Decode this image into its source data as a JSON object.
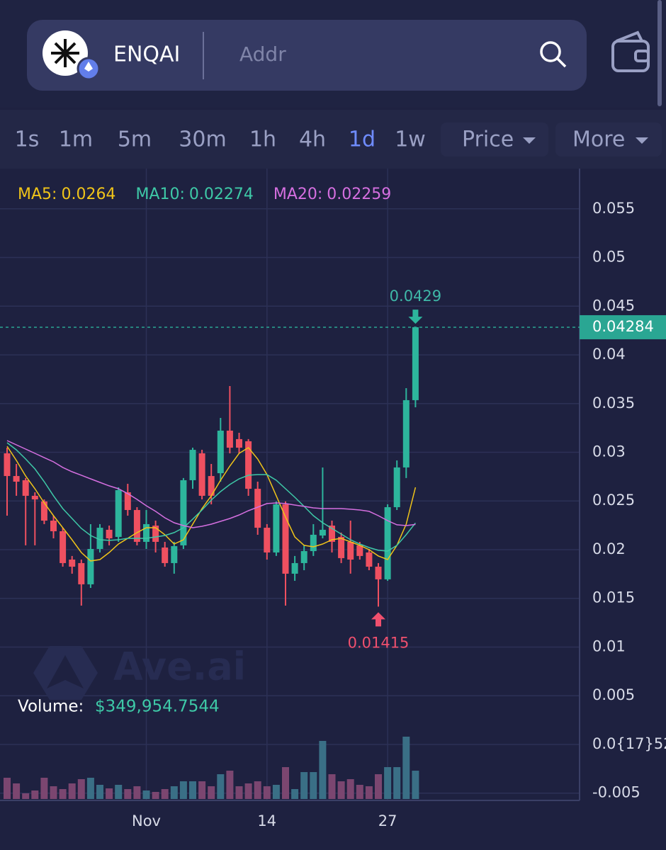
{
  "header": {
    "token": "ENQAI",
    "search_placeholder": "Addr"
  },
  "intervals": [
    "1s",
    "1m",
    "5m",
    "30m",
    "1h",
    "4h",
    "1d",
    "1w"
  ],
  "menus": [
    "Price",
    "More"
  ],
  "watermark": "Ave.ai",
  "chart_data": {
    "type": "candlestick",
    "categories": [
      null,
      null,
      null,
      null,
      null,
      null,
      null,
      null,
      null,
      null,
      null,
      null,
      null,
      null,
      null,
      "Nov",
      null,
      null,
      null,
      null,
      null,
      null,
      null,
      null,
      null,
      null,
      null,
      null,
      "14",
      null,
      null,
      null,
      null,
      null,
      null,
      null,
      null,
      null,
      null,
      null,
      null,
      "27",
      null,
      null,
      null
    ],
    "candles": {
      "up_color": "#2db59c",
      "down_color": "#ef5060",
      "open": [
        0.02989,
        0.02756,
        0.02713,
        0.02553,
        0.02495,
        0.02298,
        0.02189,
        0.01898,
        0.01862,
        0.01644,
        0.02007,
        0.02204,
        0.02131,
        0.02589,
        0.02407,
        0.0208,
        0.02247,
        0.02022,
        0.01862,
        0.02044,
        0.02713,
        0.02989,
        0.02756,
        0.02785,
        0.03222,
        0.03135,
        0.03113,
        0.02625,
        0.02225,
        0.01971,
        0.02465,
        0.01753,
        0.01862,
        0.01985,
        0.02145,
        0.02247,
        0.02131,
        0.0208,
        0.02044,
        0.01971,
        0.01825,
        0.01695,
        0.02436,
        0.02844,
        0.03535
      ],
      "high": [
        0.03047,
        0.0288,
        0.02735,
        0.02589,
        0.02516,
        0.02349,
        0.02225,
        0.01935,
        0.01898,
        0.02262,
        0.02262,
        0.02247,
        0.0264,
        0.02676,
        0.02436,
        0.02407,
        0.02298,
        0.0208,
        0.0208,
        0.02735,
        0.03047,
        0.03025,
        0.0288,
        0.03353,
        0.0368,
        0.032,
        0.03135,
        0.02698,
        0.02262,
        0.02495,
        0.02495,
        0.01935,
        0.02044,
        0.02262,
        0.02844,
        0.02298,
        0.02175,
        0.02298,
        0.0208,
        0.02007,
        0.01862,
        0.02465,
        0.02916,
        0.03658,
        0.0429
      ],
      "low": [
        0.02349,
        0.02553,
        0.02044,
        0.02044,
        0.02262,
        0.02116,
        0.01825,
        0.01753,
        0.01425,
        0.01607,
        0.01971,
        0.02044,
        0.0208,
        0.02349,
        0.02044,
        0.02007,
        0.01971,
        0.01825,
        0.01753,
        0.02007,
        0.02625,
        0.02516,
        0.02465,
        0.02698,
        0.02989,
        0.02989,
        0.02553,
        0.02153,
        0.01898,
        0.01935,
        0.01425,
        0.0168,
        0.01789,
        0.01935,
        0.02116,
        0.01971,
        0.01862,
        0.01753,
        0.01898,
        0.01789,
        0.01415,
        0.0168,
        0.02407,
        0.02735,
        0.03462
      ],
      "close": [
        0.02756,
        0.02698,
        0.02553,
        0.02516,
        0.02298,
        0.02189,
        0.01862,
        0.01825,
        0.01644,
        0.02007,
        0.02225,
        0.02116,
        0.02611,
        0.02407,
        0.0208,
        0.02262,
        0.0208,
        0.01862,
        0.02036,
        0.02713,
        0.03025,
        0.02553,
        0.02553,
        0.03222,
        0.03047,
        0.03047,
        0.02625,
        0.02225,
        0.01971,
        0.02465,
        0.01753,
        0.01862,
        0.01985,
        0.02153,
        0.02204,
        0.0208,
        0.01913,
        0.01898,
        0.01935,
        0.01825,
        0.01695,
        0.02436,
        0.02844,
        0.03535,
        0.04284
      ]
    },
    "series": [
      {
        "name": "MA5:",
        "color": "#f0c419",
        "values": [
          0.03062,
          0.02916,
          0.02756,
          0.02625,
          0.0248,
          0.02349,
          0.02225,
          0.02102,
          0.01971,
          0.01884,
          0.01898,
          0.01971,
          0.02058,
          0.02116,
          0.02175,
          0.02225,
          0.02225,
          0.02153,
          0.02058,
          0.02102,
          0.02262,
          0.02422,
          0.02553,
          0.02713,
          0.02858,
          0.02989,
          0.03047,
          0.02931,
          0.02771,
          0.02553,
          0.02335,
          0.02131,
          0.02044,
          0.02029,
          0.02058,
          0.02102,
          0.02116,
          0.0208,
          0.02044,
          0.02,
          0.01935,
          0.01898,
          0.02044,
          0.02262,
          0.0264
        ]
      },
      {
        "name": "MA10:",
        "color": "#3ec9a7",
        "values": [
          0.03098,
          0.03025,
          0.02931,
          0.02829,
          0.02698,
          0.02553,
          0.02422,
          0.0232,
          0.02218,
          0.02145,
          0.02102,
          0.02095,
          0.02102,
          0.02116,
          0.02116,
          0.02116,
          0.02131,
          0.02145,
          0.02175,
          0.02225,
          0.02313,
          0.02407,
          0.02509,
          0.02596,
          0.02669,
          0.02727,
          0.02764,
          0.02771,
          0.02771,
          0.02713,
          0.02625,
          0.02538,
          0.02444,
          0.02349,
          0.02276,
          0.02218,
          0.0216,
          0.02102,
          0.02058,
          0.02022,
          0.01993,
          0.01985,
          0.02044,
          0.02153,
          0.02274
        ]
      },
      {
        "name": "MA20:",
        "color": "#d56fe0",
        "values": [
          0.0312,
          0.03076,
          0.03033,
          0.02989,
          0.02945,
          0.02902,
          0.02844,
          0.028,
          0.02764,
          0.02727,
          0.02691,
          0.02655,
          0.02625,
          0.02575,
          0.02516,
          0.02451,
          0.02393,
          0.02327,
          0.02276,
          0.02247,
          0.02225,
          0.0224,
          0.02262,
          0.02291,
          0.0232,
          0.02356,
          0.024,
          0.02436,
          0.02473,
          0.0248,
          0.02473,
          0.02458,
          0.02444,
          0.02429,
          0.02422,
          0.02422,
          0.02422,
          0.02415,
          0.02407,
          0.02393,
          0.02349,
          0.02298,
          0.02255,
          0.02247,
          0.02259
        ]
      }
    ],
    "volume": {
      "label": "Volume:",
      "current_label": "$349,954.7544",
      "up_color": "#3a6f86",
      "down_color": "#7b4670",
      "values": [
        262500,
        192500,
        70000,
        105000,
        262500,
        157500,
        122500,
        192500,
        245000,
        262500,
        175000,
        131250,
        175000,
        122500,
        157500,
        105000,
        87500,
        122500,
        157500,
        218750,
        218750,
        218750,
        157500,
        306250,
        350000,
        157500,
        192500,
        218750,
        157500,
        175000,
        393750,
        122500,
        332500,
        332500,
        717500,
        306250,
        218750,
        245000,
        175000,
        157500,
        306250,
        393750,
        393750,
        770000,
        349954.7544
      ]
    },
    "ylim": [
      -0.00575,
      0.05913
    ],
    "yticks": [
      {
        "value": -0.005,
        "label": "-0.005"
      },
      {
        "value": 5.2e-19,
        "label": "0.0{17}52"
      },
      0.005,
      0.01,
      0.015,
      0.02,
      0.025,
      0.03,
      0.035,
      0.04,
      0.045,
      0.05,
      0.055
    ],
    "grid": true
  }
}
